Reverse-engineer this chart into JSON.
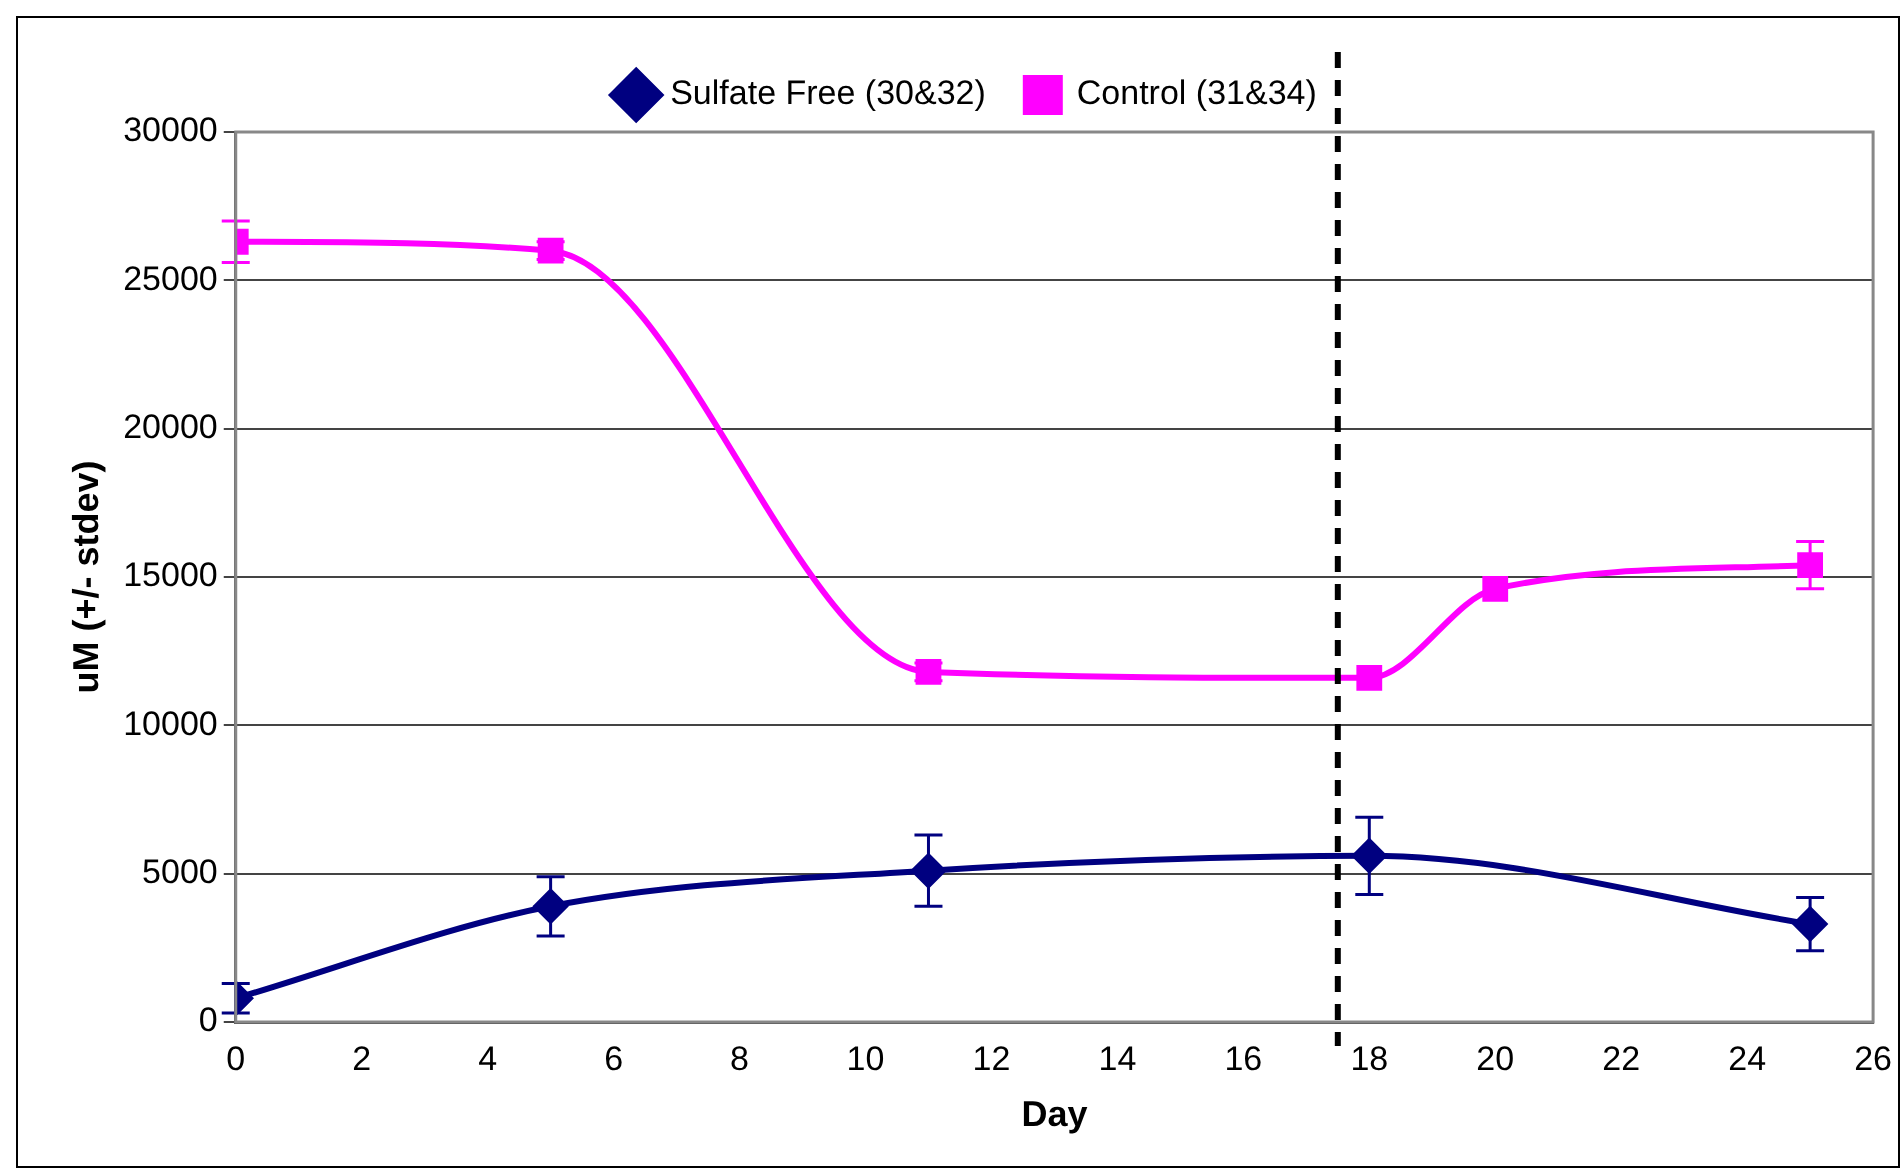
{
  "chart_data": {
    "type": "line",
    "xlabel": "Day",
    "ylabel": "uM (+/- stdev)",
    "xlim": [
      0,
      26
    ],
    "xticks": [
      0,
      2,
      4,
      6,
      8,
      10,
      12,
      14,
      16,
      18,
      20,
      22,
      24,
      26
    ],
    "ylim": [
      0,
      30000
    ],
    "yticks": [
      0,
      5000,
      10000,
      15000,
      20000,
      25000,
      30000
    ],
    "grid": "y",
    "legend": "top",
    "series": [
      {
        "name": "Sulfate Free (30&32)",
        "color": "#000080",
        "marker": "diamond",
        "x": [
          0,
          5,
          11,
          18,
          25
        ],
        "values": [
          800,
          3900,
          5100,
          5600,
          3300
        ],
        "errors": [
          500,
          1000,
          1200,
          1300,
          900
        ]
      },
      {
        "name": "Control (31&34)",
        "color": "#ff00ff",
        "marker": "square",
        "x": [
          0,
          5,
          11,
          18,
          20,
          25
        ],
        "values": [
          26300,
          26000,
          11800,
          11600,
          14600,
          15400
        ],
        "errors": [
          700,
          300,
          300,
          null,
          null,
          800
        ]
      }
    ],
    "ref_lines": [
      {
        "axis": "x",
        "value": 17.5,
        "color": "#000000",
        "line_style": "dashed"
      }
    ]
  }
}
